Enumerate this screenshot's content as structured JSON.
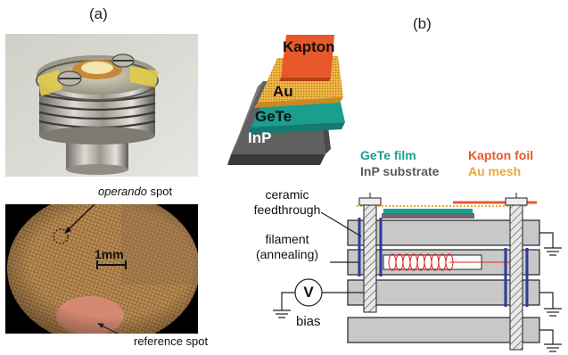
{
  "panels": {
    "a": "(a)",
    "b": "(b)"
  },
  "photo_a": {
    "operando_label_italic": "operando",
    "operando_label_rest": " spot",
    "scale_bar": "1mm",
    "reference_label": "reference spot"
  },
  "stack_3d": {
    "kapton": "Kapton",
    "au": "Au",
    "gete": "GeTe",
    "inp": "InP"
  },
  "legend": {
    "gete_film": "GeTe film",
    "inp_substrate": "InP substrate",
    "kapton_foil": "Kapton foil",
    "au_mesh": "Au mesh"
  },
  "schematic": {
    "ceramic_line1": "ceramic",
    "ceramic_line2": "feedthrough",
    "filament_line1": "filament",
    "filament_line2": "(annealing)",
    "voltmeter": "V",
    "bias": "bias"
  },
  "colors": {
    "gete": "#1a9e8f",
    "inp": "#5a5a5a",
    "kapton": "#e8582a",
    "au": "#e8a838",
    "filament": "#e02020",
    "feedthrough": "#2b3a9e",
    "plate": "#c8c8c8"
  }
}
